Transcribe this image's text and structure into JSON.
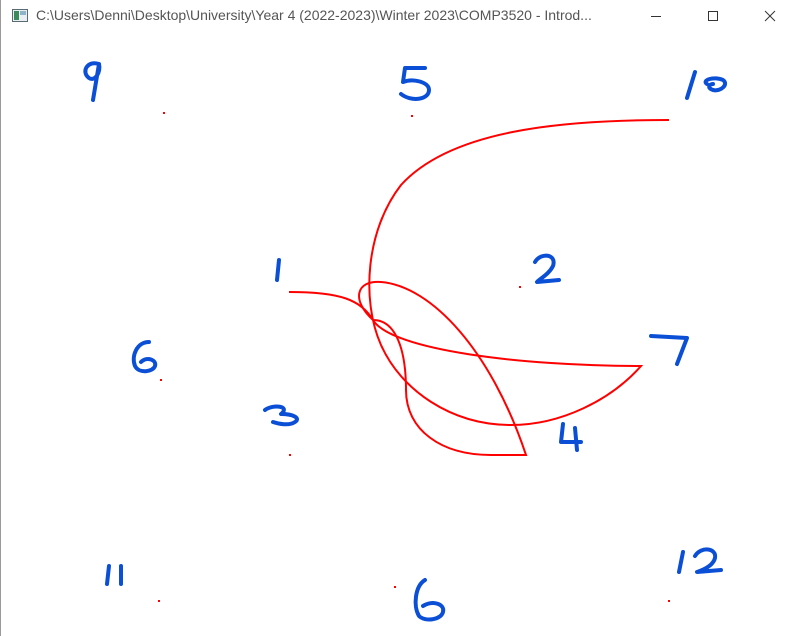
{
  "window": {
    "title": "C:\\Users\\Denni\\Desktop\\University\\Year 4 (2022-2023)\\Winter 2023\\COMP3520 - Introd...",
    "buttons": {
      "minimize": "minimize-icon",
      "maximize": "maximize-icon",
      "close": "close-icon"
    }
  },
  "canvas": {
    "background": "#ffffff",
    "curve_color": "#ff0000",
    "point_color": "#ff0000",
    "label_color": "#0a4fd6",
    "annotations": [
      "9",
      "5",
      "10",
      "1",
      "2",
      "6",
      "7",
      "3",
      "4",
      "11",
      "6",
      "12"
    ]
  }
}
